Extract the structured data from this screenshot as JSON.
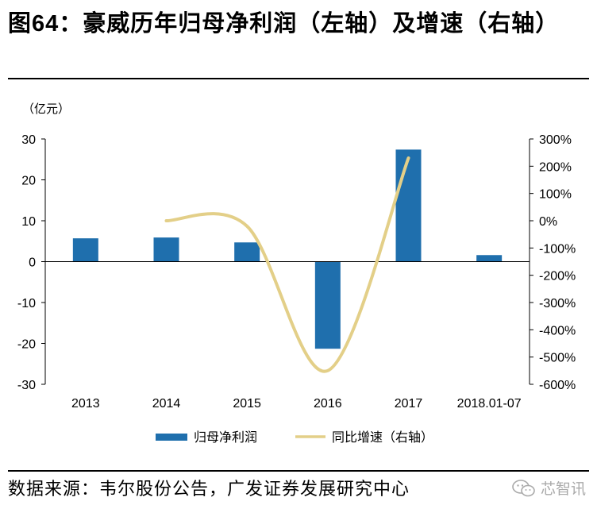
{
  "header": {
    "figure_label": "图",
    "figure_number": "64",
    "title_text": "：豪威历年归母净利润（左轴）及增速（右轴）"
  },
  "footer": {
    "source": "数据来源：韦尔股份公告，广发证券发展研究中心",
    "watermark": "芯智讯"
  },
  "colors": {
    "bar": "#1f6fad",
    "line": "#e3cf88",
    "axis": "#000000"
  },
  "chart_data": {
    "type": "bar",
    "categories": [
      "2013",
      "2014",
      "2015",
      "2016",
      "2017",
      "2018.01-07"
    ],
    "y_unit_label": "（亿元）",
    "ylim": [
      -30,
      30
    ],
    "yticks": [
      "30",
      "20",
      "10",
      "0",
      "-10",
      "-20",
      "-30"
    ],
    "y2lim": [
      -600,
      300
    ],
    "y2ticks": [
      "300%",
      "200%",
      "100%",
      "0%",
      "-100%",
      "-200%",
      "-300%",
      "-400%",
      "-500%",
      "-600%"
    ],
    "series": [
      {
        "name": "归母净利润",
        "type": "bar",
        "axis": "left",
        "values": [
          5.7,
          5.9,
          4.7,
          -21.3,
          27.4,
          1.6
        ]
      },
      {
        "name": "同比增速（右轴）",
        "type": "line",
        "axis": "right",
        "values": [
          null,
          0,
          -20,
          -550,
          230,
          null
        ]
      }
    ],
    "legend_position": "bottom",
    "grid": false
  }
}
